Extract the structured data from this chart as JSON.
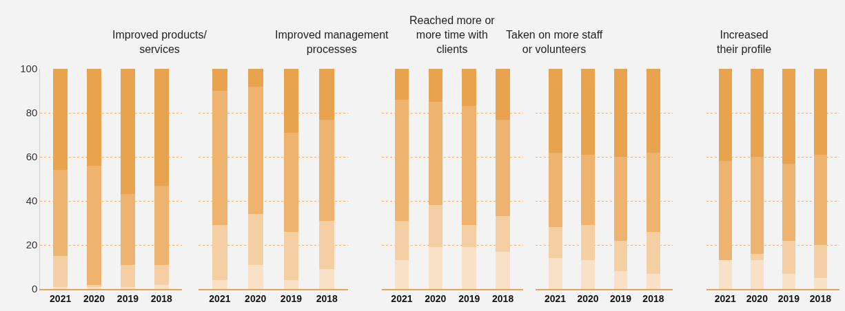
{
  "chart_data": [
    {
      "type": "bar",
      "title": "Improved products/\nservices",
      "categories": [
        "2021",
        "2020",
        "2019",
        "2018"
      ],
      "stacked": true,
      "ylim": [
        0,
        100
      ],
      "yticks": [
        0,
        20,
        40,
        60,
        80,
        100
      ],
      "grid": "y",
      "series": [
        {
          "color": "#f8e1c6",
          "values": [
            1,
            1,
            1,
            2
          ]
        },
        {
          "color": "#f3cfa3",
          "values": [
            14,
            1,
            10,
            9
          ]
        },
        {
          "color": "#edb36f",
          "values": [
            39,
            54,
            32,
            36
          ]
        },
        {
          "color": "#e8a34e",
          "values": [
            46,
            44,
            57,
            53
          ]
        }
      ]
    },
    {
      "type": "bar",
      "title": "Improved management\nprocesses",
      "categories": [
        "2021",
        "2020",
        "2019",
        "2018"
      ],
      "stacked": true,
      "ylim": [
        0,
        100
      ],
      "yticks": [
        0,
        20,
        40,
        60,
        80,
        100
      ],
      "grid": "y",
      "tick_labels": "x",
      "series": [
        {
          "color": "#f8e1c6",
          "values": [
            4,
            11,
            4,
            9
          ]
        },
        {
          "color": "#f3cfa3",
          "values": [
            25,
            23,
            22,
            22
          ]
        },
        {
          "color": "#edb36f",
          "values": [
            61,
            58,
            45,
            46
          ]
        },
        {
          "color": "#e8a34e",
          "values": [
            10,
            8,
            29,
            23
          ]
        }
      ]
    },
    {
      "type": "bar",
      "title": "Reached more or\nmore time with\nclients",
      "categories": [
        "2021",
        "2020",
        "2019",
        "2018"
      ],
      "stacked": true,
      "ylim": [
        0,
        100
      ],
      "yticks": [
        0,
        20,
        40,
        60,
        80,
        100
      ],
      "grid": "y",
      "tick_labels": "x",
      "series": [
        {
          "color": "#f8e1c6",
          "values": [
            13,
            19,
            19,
            17
          ]
        },
        {
          "color": "#f3cfa3",
          "values": [
            18,
            19,
            10,
            16
          ]
        },
        {
          "color": "#edb36f",
          "values": [
            55,
            47,
            54,
            44
          ]
        },
        {
          "color": "#e8a34e",
          "values": [
            14,
            15,
            17,
            23
          ]
        }
      ]
    },
    {
      "type": "bar",
      "title": "Taken on more staff\nor volunteers",
      "categories": [
        "2021",
        "2020",
        "2019",
        "2018"
      ],
      "stacked": true,
      "ylim": [
        0,
        100
      ],
      "yticks": [
        0,
        20,
        40,
        60,
        80,
        100
      ],
      "grid": "y",
      "tick_labels": "x",
      "series": [
        {
          "color": "#f8e1c6",
          "values": [
            14,
            13,
            8,
            7
          ]
        },
        {
          "color": "#f3cfa3",
          "values": [
            14,
            16,
            14,
            19
          ]
        },
        {
          "color": "#edb36f",
          "values": [
            34,
            32,
            38,
            36
          ]
        },
        {
          "color": "#e8a34e",
          "values": [
            38,
            39,
            40,
            38
          ]
        }
      ]
    },
    {
      "type": "bar",
      "title": "Increased\ntheir profile",
      "categories": [
        "2021",
        "2020",
        "2019",
        "2018"
      ],
      "stacked": true,
      "ylim": [
        0,
        100
      ],
      "yticks": [
        0,
        20,
        40,
        60,
        80,
        100
      ],
      "grid": "y",
      "tick_labels": "x",
      "series": [
        {
          "color": "#f8e1c6",
          "values": [
            13,
            13,
            7,
            5
          ]
        },
        {
          "color": "#f3cfa3",
          "values": [
            0,
            3,
            15,
            15
          ]
        },
        {
          "color": "#edb36f",
          "values": [
            45,
            44,
            35,
            41
          ]
        },
        {
          "color": "#e8a34e",
          "values": [
            42,
            40,
            43,
            39
          ]
        }
      ]
    }
  ]
}
